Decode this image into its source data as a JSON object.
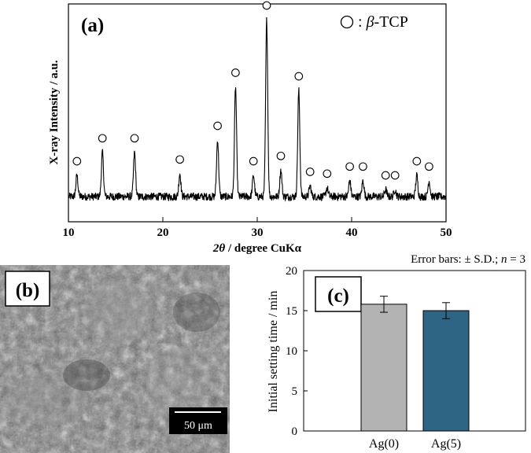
{
  "chart_data": [
    {
      "panel": "(a)",
      "type": "line",
      "xlabel_italic": "2θ",
      "xlabel_rest": " / degree CuKα",
      "ylabel": "X-ray Intensity / a.u.",
      "xlim": [
        10,
        50
      ],
      "x_ticks": [
        10,
        20,
        30,
        40,
        50
      ],
      "legend_text": ": ",
      "legend_beta": "β",
      "legend_rest": "-TCP",
      "legend_position": "top-right",
      "peak_marker": "circle",
      "peaks": [
        {
          "x": 10.9,
          "y": 0.12
        },
        {
          "x": 13.6,
          "y": 0.25
        },
        {
          "x": 17.0,
          "y": 0.25
        },
        {
          "x": 21.8,
          "y": 0.13
        },
        {
          "x": 25.8,
          "y": 0.32
        },
        {
          "x": 27.7,
          "y": 0.62
        },
        {
          "x": 29.6,
          "y": 0.12
        },
        {
          "x": 31.0,
          "y": 1.0
        },
        {
          "x": 32.5,
          "y": 0.15
        },
        {
          "x": 34.4,
          "y": 0.6
        },
        {
          "x": 35.6,
          "y": 0.06
        },
        {
          "x": 37.4,
          "y": 0.05
        },
        {
          "x": 39.8,
          "y": 0.09
        },
        {
          "x": 41.2,
          "y": 0.09
        },
        {
          "x": 43.6,
          "y": 0.04
        },
        {
          "x": 44.6,
          "y": 0.04
        },
        {
          "x": 46.9,
          "y": 0.12
        },
        {
          "x": 48.2,
          "y": 0.09
        }
      ]
    },
    {
      "panel": "(c)",
      "type": "bar",
      "categories": [
        "Ag(0)",
        "Ag(5)"
      ],
      "values": [
        15.8,
        15.0
      ],
      "errors": [
        1.0,
        1.0
      ],
      "colors": [
        "#b3b3b3",
        "#2e6585"
      ],
      "ylabel": "Initial setting time / min",
      "ylim": [
        0,
        20
      ],
      "y_ticks": [
        0,
        5,
        10,
        15,
        20
      ],
      "note_prefix": "Error bars: ",
      "note_pm": "± S.D.; ",
      "note_n": "n",
      "note_suffix": " = 3"
    }
  ],
  "sem_image": {
    "panel": "(b)",
    "scale_bar": "50 μm"
  }
}
